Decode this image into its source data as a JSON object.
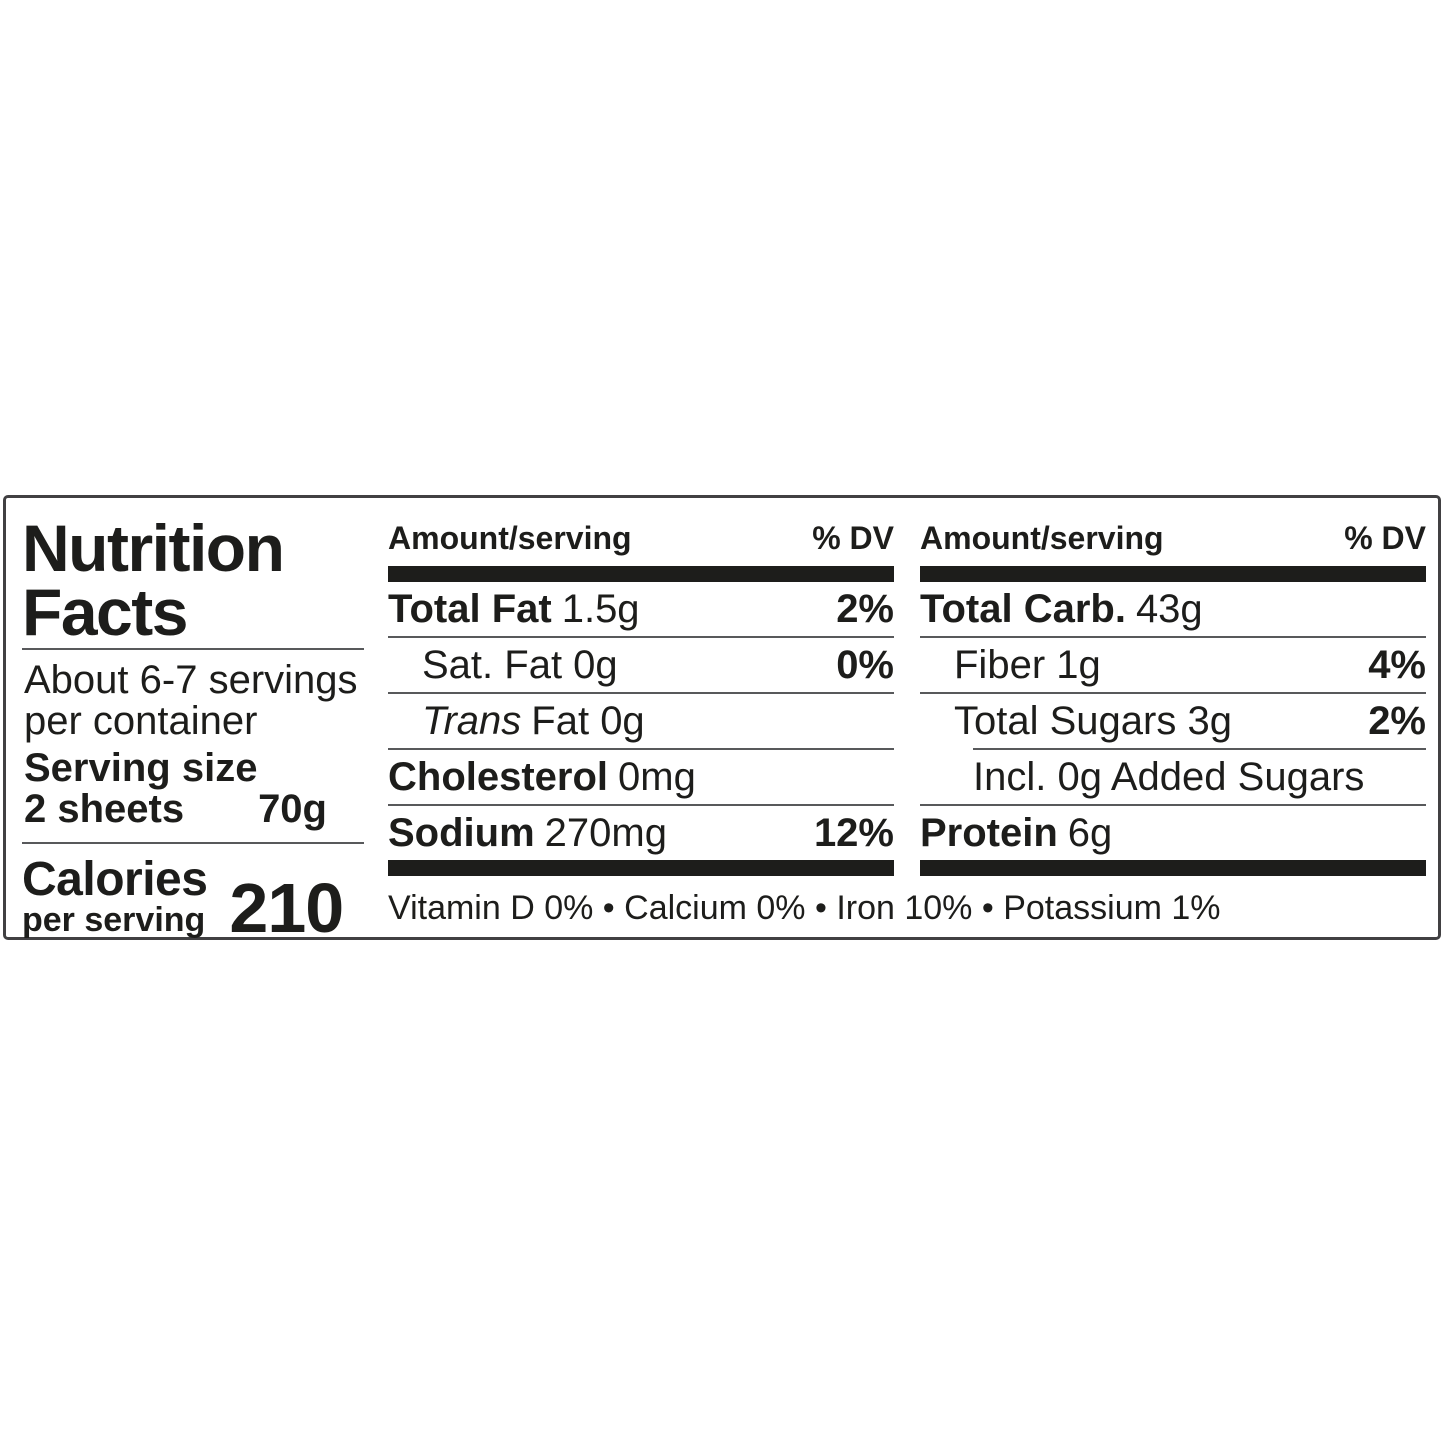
{
  "colors": {
    "text": "#1d1d1b",
    "thick_bar": "#1d1d1b",
    "thin_rule": "#58595b",
    "border": "#414042",
    "background": "#ffffff"
  },
  "label": {
    "title_line1": "Nutrition",
    "title_line2": "Facts",
    "servings_line1": "About 6-7 servings",
    "servings_line2": "per container",
    "serving_size_label": "Serving size",
    "serving_size_qty": "2 sheets",
    "serving_size_weight": "70g",
    "calories_label": "Calories",
    "calories_sublabel": "per serving",
    "calories_value": "210"
  },
  "mid": {
    "header": {
      "amount": "Amount/serving",
      "dv": "% DV"
    },
    "total_fat": {
      "name": "Total Fat",
      "value": "1.5g",
      "dv": "2%"
    },
    "sat_fat": {
      "text": "Sat. Fat 0g",
      "dv": "0%"
    },
    "trans_fat": {
      "italic": "Trans",
      "rest": "Fat 0g"
    },
    "cholesterol": {
      "name": "Cholesterol",
      "value": "0mg"
    },
    "sodium": {
      "name": "Sodium",
      "value": "270mg",
      "dv": "12%"
    }
  },
  "right": {
    "header": {
      "amount": "Amount/serving",
      "dv": "% DV"
    },
    "total_carb": {
      "name": "Total Carb.",
      "value": "43g"
    },
    "fiber": {
      "text": "Fiber 1g",
      "dv": "4%"
    },
    "total_sugars": {
      "text": "Total Sugars 3g",
      "dv": "2%"
    },
    "added_sugars": {
      "text": "Incl. 0g Added Sugars"
    },
    "protein": {
      "name": "Protein",
      "value": "6g"
    }
  },
  "footer": {
    "text": "Vitamin D 0% • Calcium 0% • Iron 10% • Potassium 1%"
  }
}
